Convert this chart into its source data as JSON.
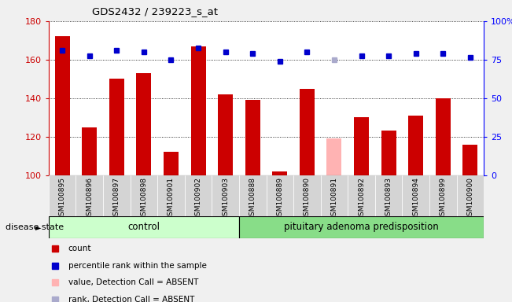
{
  "title": "GDS2432 / 239223_s_at",
  "samples": [
    "GSM100895",
    "GSM100896",
    "GSM100897",
    "GSM100898",
    "GSM100901",
    "GSM100902",
    "GSM100903",
    "GSM100888",
    "GSM100889",
    "GSM100890",
    "GSM100891",
    "GSM100892",
    "GSM100893",
    "GSM100894",
    "GSM100899",
    "GSM100900"
  ],
  "bar_values": [
    172,
    125,
    150,
    153,
    112,
    167,
    142,
    139,
    102,
    145,
    119,
    130,
    123,
    131,
    140,
    116
  ],
  "bar_colors": [
    "#cc0000",
    "#cc0000",
    "#cc0000",
    "#cc0000",
    "#cc0000",
    "#cc0000",
    "#cc0000",
    "#cc0000",
    "#cc0000",
    "#cc0000",
    "#ffb3b3",
    "#cc0000",
    "#cc0000",
    "#cc0000",
    "#cc0000",
    "#cc0000"
  ],
  "dot_values": [
    165,
    162,
    165,
    164,
    160,
    166,
    164,
    163,
    159,
    164,
    160,
    162,
    162,
    163,
    163,
    161
  ],
  "dot_colors": [
    "#0000cc",
    "#0000cc",
    "#0000cc",
    "#0000cc",
    "#0000cc",
    "#0000cc",
    "#0000cc",
    "#0000cc",
    "#0000cc",
    "#0000cc",
    "#aaaacc",
    "#0000cc",
    "#0000cc",
    "#0000cc",
    "#0000cc",
    "#0000cc"
  ],
  "ylim_left": [
    100,
    180
  ],
  "ylim_right": [
    0,
    100
  ],
  "yticks_left": [
    100,
    120,
    140,
    160,
    180
  ],
  "yticks_right": [
    0,
    25,
    50,
    75,
    100
  ],
  "control_count": 7,
  "disease_count": 9,
  "control_label": "control",
  "disease_label": "pituitary adenoma predisposition",
  "disease_state_label": "disease state",
  "legend_items": [
    {
      "label": "count",
      "color": "#cc0000"
    },
    {
      "label": "percentile rank within the sample",
      "color": "#0000cc"
    },
    {
      "label": "value, Detection Call = ABSENT",
      "color": "#ffb3b3"
    },
    {
      "label": "rank, Detection Call = ABSENT",
      "color": "#aaaacc"
    }
  ],
  "bg_color": "#f0f0f0",
  "plot_bg_color": "#ffffff",
  "control_bg": "#ccffcc",
  "disease_bg": "#88dd88"
}
